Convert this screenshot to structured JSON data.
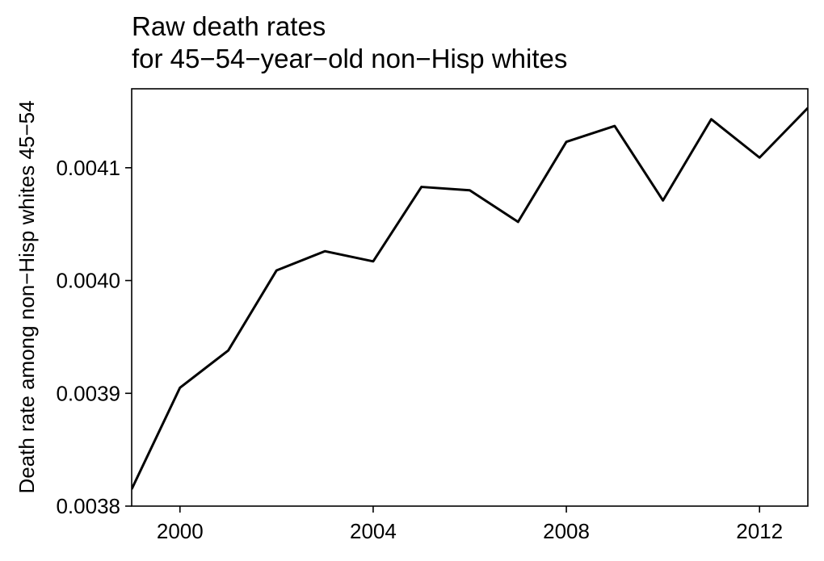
{
  "chart_data": {
    "type": "line",
    "title": [
      "Raw death rates",
      "for 45−54−year−old non−Hisp whites"
    ],
    "xlabel": "",
    "ylabel": "Death rate among non−Hisp whites 45−54",
    "xlim": [
      1999,
      2013
    ],
    "ylim": [
      0.0038,
      0.00417
    ],
    "xticks": [
      2000,
      2004,
      2008,
      2012
    ],
    "xtick_labels": [
      "2000",
      "2004",
      "2008",
      "2012"
    ],
    "yticks": [
      0.0038,
      0.0039,
      0.004,
      0.0041
    ],
    "ytick_labels": [
      "0.0038",
      "0.0039",
      "0.0040",
      "0.0041"
    ],
    "grid": false,
    "line_color": "#000000",
    "series": [
      {
        "x": [
          1999,
          2000,
          2001,
          2002,
          2003,
          2004,
          2005,
          2006,
          2007,
          2008,
          2009,
          2010,
          2011,
          2012,
          2013
        ],
        "values": [
          0.003815,
          0.003905,
          0.003938,
          0.004009,
          0.004026,
          0.004017,
          0.004083,
          0.00408,
          0.004052,
          0.004123,
          0.004137,
          0.004071,
          0.004143,
          0.004109,
          0.004153
        ]
      }
    ]
  }
}
